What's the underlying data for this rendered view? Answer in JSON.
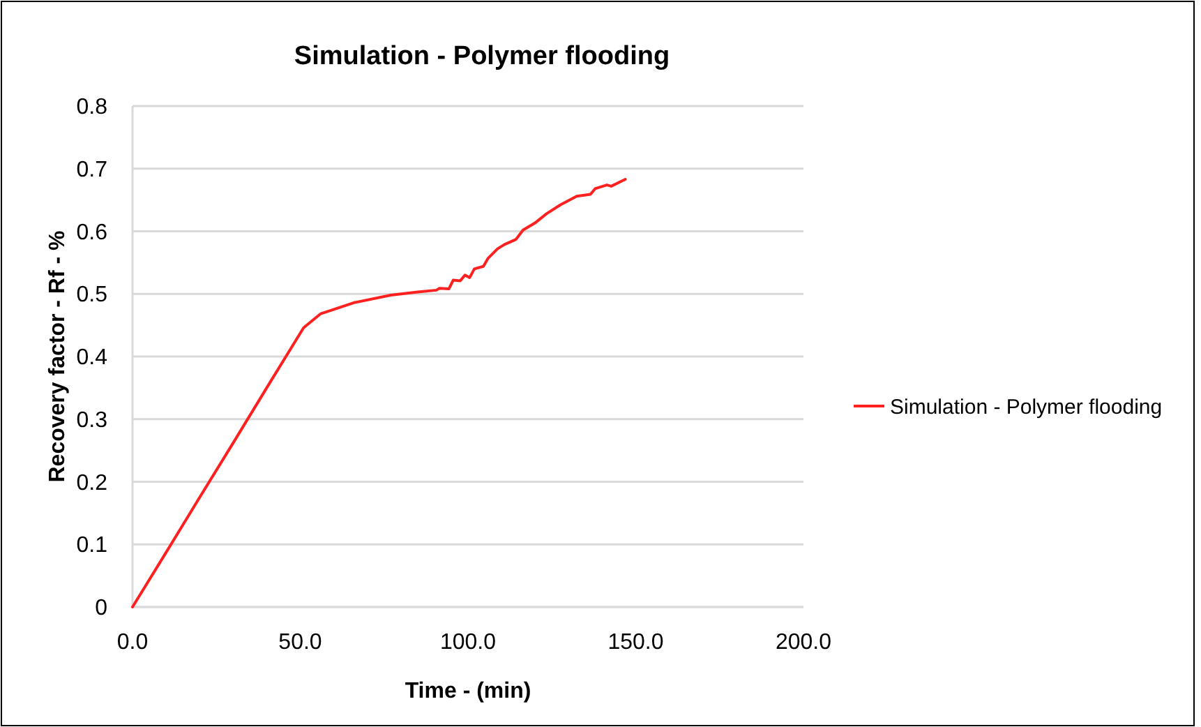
{
  "chart_data": {
    "type": "line",
    "title": "Simulation - Polymer flooding",
    "xlabel": "Time - (min)",
    "ylabel": "Recovery factor - Rf - %",
    "xlim": [
      0,
      200
    ],
    "xticks": [
      {
        "value": 0,
        "label": "0.0"
      },
      {
        "value": 50,
        "label": "50.0"
      },
      {
        "value": 100,
        "label": "100.0"
      },
      {
        "value": 150,
        "label": "150.0"
      },
      {
        "value": 200,
        "label": "200.0"
      }
    ],
    "ylim": [
      0,
      0.8
    ],
    "yticks": [
      0,
      0.1,
      0.2,
      0.3,
      0.4,
      0.5,
      0.6,
      0.7,
      0.8
    ],
    "grid": "y",
    "legend": "right",
    "marker": "none",
    "line_style": "solid",
    "series": [
      {
        "name": "Simulation - Polymer flooding",
        "color": "#ff2020",
        "x": [
          0,
          10,
          20,
          30,
          40,
          51,
          56,
          66,
          77,
          85,
          90.6,
          91.5,
          94.3,
          95.6,
          97.7,
          99.1,
          100.5,
          101.9,
          104.6,
          106,
          108.8,
          110.9,
          114.3,
          116.4,
          119.9,
          123.4,
          127.5,
          132.4,
          136.5,
          137.9,
          141.4,
          142.7,
          146.9
        ],
        "values": [
          0,
          0.087,
          0.175,
          0.262,
          0.35,
          0.446,
          0.468,
          0.486,
          0.498,
          0.503,
          0.506,
          0.509,
          0.508,
          0.522,
          0.521,
          0.53,
          0.526,
          0.54,
          0.544,
          0.557,
          0.572,
          0.579,
          0.587,
          0.602,
          0.613,
          0.628,
          0.642,
          0.656,
          0.659,
          0.668,
          0.674,
          0.672,
          0.683
        ]
      }
    ]
  }
}
